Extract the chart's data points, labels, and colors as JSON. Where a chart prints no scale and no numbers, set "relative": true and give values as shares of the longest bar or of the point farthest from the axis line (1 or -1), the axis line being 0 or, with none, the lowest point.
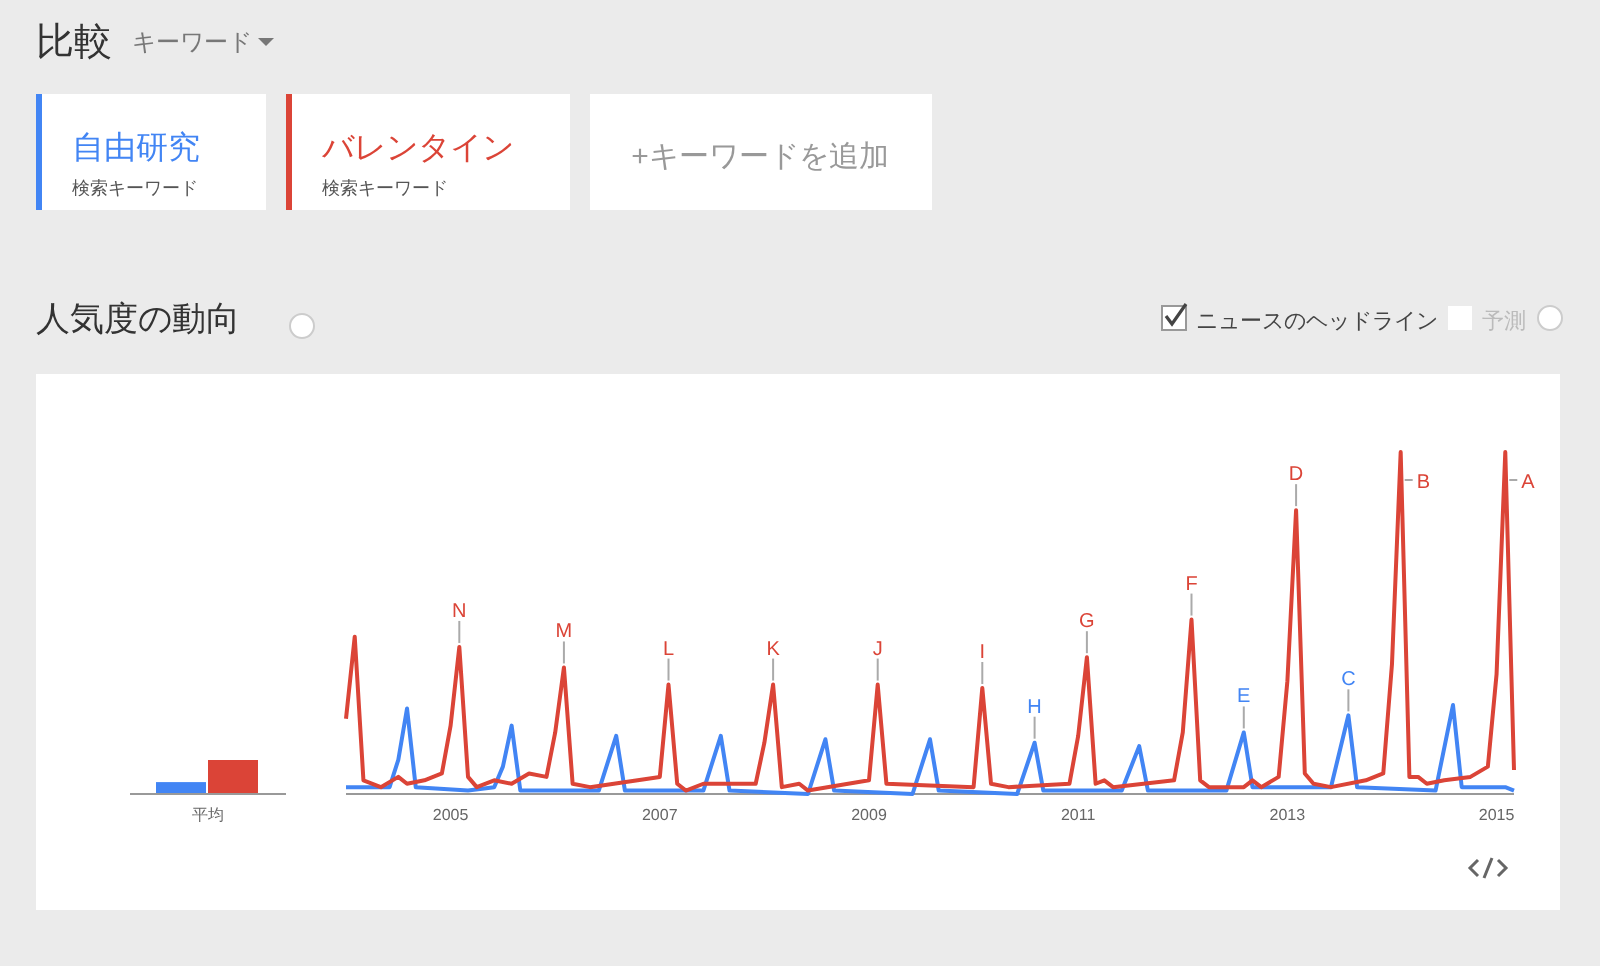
{
  "chart_data": [
    {
      "type": "other",
      "title": "比較",
      "annotations": [
        "キーワード",
        "+キーワードを追加",
        "ニュースのヘッドライン",
        "予測"
      ]
    },
    {
      "type": "bar",
      "relative": true,
      "categories": [
        "平均"
      ],
      "series": [
        {
          "color": "#4285f4",
          "values": [
            0.35
          ]
        },
        {
          "color": "#db4437",
          "values": [
            1
          ]
        }
      ]
    },
    {
      "type": "line",
      "title": "人気度の動向",
      "relative": true,
      "legend": "top left",
      "legend_title": "検索キーワード",
      "xlim": [
        "2004-01",
        "2015-03"
      ],
      "xticks": [
        "2005",
        "2007",
        "2009",
        "2011",
        "2013",
        "2015"
      ],
      "series": [
        {
          "name": "自由研究",
          "color": "#4285f4",
          "x": [
            "2004-01",
            "2004-06",
            "2004-07",
            "2004-08",
            "2004-09",
            "2005-03",
            "2005-06",
            "2005-07",
            "2005-08",
            "2005-09",
            "2006-06",
            "2006-08",
            "2006-09",
            "2007-06",
            "2007-08",
            "2007-09",
            "2008-06",
            "2008-08",
            "2008-09",
            "2009-06",
            "2009-08",
            "2009-09",
            "2010-06",
            "2010-08",
            "2010-09",
            "2011-06",
            "2011-08",
            "2011-09",
            "2012-06",
            "2012-08",
            "2012-09",
            "2013-06",
            "2013-08",
            "2013-09",
            "2014-06",
            "2014-08",
            "2014-09",
            "2015-02",
            "2015-03"
          ],
          "values": [
            0.02,
            0.02,
            0.1,
            0.25,
            0.02,
            0.01,
            0.02,
            0.08,
            0.2,
            0.01,
            0.01,
            0.17,
            0.01,
            0.01,
            0.17,
            0.01,
            0.0,
            0.16,
            0.01,
            0.0,
            0.16,
            0.01,
            0.0,
            0.15,
            0.01,
            0.01,
            0.14,
            0.01,
            0.01,
            0.18,
            0.02,
            0.02,
            0.23,
            0.02,
            0.01,
            0.26,
            0.02,
            0.02,
            0.01
          ]
        },
        {
          "name": "バレンタイン",
          "color": "#db4437",
          "x": [
            "2004-01",
            "2004-02",
            "2004-03",
            "2004-05",
            "2004-07",
            "2004-08",
            "2004-10",
            "2004-12",
            "2005-01",
            "2005-02",
            "2005-03",
            "2005-04",
            "2005-06",
            "2005-08",
            "2005-10",
            "2005-12",
            "2006-01",
            "2006-02",
            "2006-03",
            "2006-05",
            "2007-01",
            "2007-02",
            "2007-03",
            "2007-04",
            "2007-06",
            "2007-12",
            "2008-01",
            "2008-02",
            "2008-03",
            "2008-05",
            "2008-06",
            "2009-01",
            "2009-02",
            "2009-03",
            "2010-01",
            "2010-02",
            "2010-03",
            "2010-05",
            "2010-12",
            "2011-01",
            "2011-02",
            "2011-03",
            "2011-04",
            "2011-05",
            "2011-12",
            "2012-01",
            "2012-02",
            "2012-03",
            "2012-04",
            "2012-08",
            "2012-09",
            "2012-10",
            "2012-12",
            "2013-01",
            "2013-02",
            "2013-03",
            "2013-04",
            "2013-06",
            "2013-10",
            "2013-12",
            "2014-01",
            "2014-02",
            "2014-03",
            "2014-04",
            "2014-05",
            "2014-07",
            "2014-10",
            "2014-12",
            "2015-01",
            "2015-02",
            "2015-03"
          ],
          "values": [
            0.22,
            0.46,
            0.04,
            0.02,
            0.05,
            0.03,
            0.04,
            0.06,
            0.2,
            0.43,
            0.05,
            0.02,
            0.04,
            0.03,
            0.06,
            0.05,
            0.18,
            0.37,
            0.03,
            0.02,
            0.05,
            0.32,
            0.03,
            0.01,
            0.03,
            0.03,
            0.15,
            0.32,
            0.02,
            0.03,
            0.01,
            0.04,
            0.32,
            0.03,
            0.02,
            0.31,
            0.03,
            0.02,
            0.03,
            0.17,
            0.4,
            0.03,
            0.04,
            0.02,
            0.04,
            0.18,
            0.51,
            0.04,
            0.02,
            0.02,
            0.04,
            0.02,
            0.05,
            0.33,
            0.83,
            0.06,
            0.03,
            0.02,
            0.04,
            0.06,
            0.38,
            1.0,
            0.05,
            0.05,
            0.03,
            0.04,
            0.05,
            0.08,
            0.35,
            1.0,
            0.07
          ]
        }
      ],
      "annotations": [
        {
          "text": "N",
          "x": "2005-02",
          "y": 0.43
        },
        {
          "text": "M",
          "x": "2006-02",
          "y": 0.37
        },
        {
          "text": "L",
          "x": "2007-02",
          "y": 0.32
        },
        {
          "text": "K",
          "x": "2008-02",
          "y": 0.32
        },
        {
          "text": "J",
          "x": "2009-02",
          "y": 0.32
        },
        {
          "text": "I",
          "x": "2010-02",
          "y": 0.31
        },
        {
          "text": "H",
          "x": "2010-08",
          "y": 0.15
        },
        {
          "text": "G",
          "x": "2011-02",
          "y": 0.4
        },
        {
          "text": "F",
          "x": "2012-02",
          "y": 0.51
        },
        {
          "text": "E",
          "x": "2012-08",
          "y": 0.18
        },
        {
          "text": "D",
          "x": "2013-02",
          "y": 0.83
        },
        {
          "text": "C",
          "x": "2013-08",
          "y": 0.23
        },
        {
          "text": "B",
          "x": "2014-02",
          "y": 1.0
        },
        {
          "text": "A",
          "x": "2015-02",
          "y": 1.0
        }
      ]
    }
  ]
}
